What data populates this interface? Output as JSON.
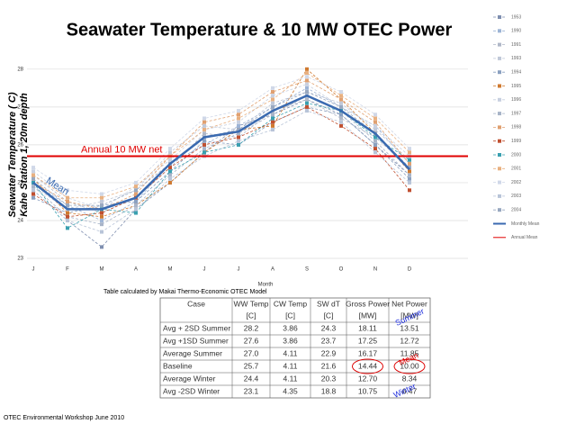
{
  "chart_data": {
    "type": "line",
    "title": "Seawater Temperature & 10 MW OTEC Power",
    "ylabel": [
      "Seawater Temperature ( C)",
      "Kahe Station 1, 20m depth"
    ],
    "xlabel": "Month",
    "categories": [
      "J",
      "F",
      "M",
      "A",
      "M",
      "J",
      "J",
      "A",
      "S",
      "O",
      "N",
      "D"
    ],
    "ylim": [
      23,
      28.4
    ],
    "yticks": [
      23,
      24,
      25,
      26,
      27,
      28
    ],
    "grid": true,
    "series": [
      {
        "name": "1953",
        "color": "#7f8fb0",
        "values": [
          24.8,
          24.0,
          23.3,
          24.3,
          25.0,
          25.8,
          26.5,
          26.8,
          27.2,
          26.8,
          26.0,
          25.2
        ]
      },
      {
        "name": "1990",
        "color": "#9db4d6",
        "values": [
          25.0,
          24.4,
          24.0,
          24.5,
          25.5,
          26.0,
          26.5,
          27.0,
          27.5,
          27.0,
          26.5,
          25.5
        ]
      },
      {
        "name": "1991",
        "color": "#b0b8c8",
        "values": [
          25.2,
          24.5,
          24.2,
          24.6,
          25.4,
          26.3,
          26.2,
          26.9,
          27.2,
          26.7,
          26.2,
          25.4
        ]
      },
      {
        "name": "1993",
        "color": "#c0c8d8",
        "values": [
          24.9,
          24.3,
          24.5,
          24.8,
          25.8,
          26.5,
          26.4,
          27.1,
          27.4,
          27.1,
          26.4,
          25.6
        ]
      },
      {
        "name": "1994",
        "color": "#8aa0c0",
        "values": [
          24.6,
          24.2,
          24.4,
          24.5,
          25.3,
          26.1,
          26.0,
          26.6,
          27.0,
          26.8,
          26.0,
          25.1
        ]
      },
      {
        "name": "1995",
        "color": "#d07a30",
        "values": [
          25.1,
          24.2,
          24.1,
          24.4,
          25.0,
          25.8,
          26.4,
          26.5,
          28.0,
          27.2,
          26.3,
          25.3
        ]
      },
      {
        "name": "1996",
        "color": "#c8d0e0",
        "values": [
          25.3,
          24.6,
          24.3,
          24.9,
          25.6,
          26.4,
          26.6,
          27.3,
          27.6,
          27.0,
          26.5,
          25.7
        ]
      },
      {
        "name": "1997",
        "color": "#a8b4c8",
        "values": [
          24.9,
          24.1,
          23.9,
          24.4,
          25.2,
          25.9,
          26.3,
          26.8,
          27.3,
          26.9,
          26.1,
          25.2
        ]
      },
      {
        "name": "1998",
        "color": "#e0a070",
        "values": [
          25.0,
          24.5,
          24.3,
          24.7,
          25.7,
          26.6,
          26.8,
          27.4,
          27.7,
          27.2,
          26.6,
          25.5
        ]
      },
      {
        "name": "1999",
        "color": "#c05030",
        "values": [
          24.7,
          24.1,
          24.2,
          24.6,
          25.4,
          26.0,
          26.2,
          26.6,
          27.0,
          26.5,
          25.9,
          24.8
        ]
      },
      {
        "name": "2000",
        "color": "#3aa0b0",
        "values": [
          25.0,
          23.8,
          24.3,
          24.2,
          25.3,
          25.8,
          26.0,
          26.7,
          27.1,
          26.9,
          26.2,
          25.6
        ]
      },
      {
        "name": "2001",
        "color": "#e8b080",
        "values": [
          25.2,
          24.6,
          24.6,
          24.9,
          25.7,
          26.4,
          26.7,
          27.2,
          27.9,
          27.3,
          26.7,
          25.8
        ]
      },
      {
        "name": "2002",
        "color": "#d0d8e8",
        "values": [
          25.4,
          24.8,
          24.7,
          25.0,
          25.9,
          26.7,
          26.9,
          27.5,
          27.8,
          27.4,
          26.8,
          25.9
        ]
      },
      {
        "name": "2003",
        "color": "#b8c4d8",
        "values": [
          24.8,
          24.0,
          23.7,
          24.3,
          25.1,
          25.7,
          26.1,
          26.4,
          26.9,
          26.6,
          25.8,
          25.0
        ]
      },
      {
        "name": "2004",
        "color": "#98a8c0",
        "values": [
          25.1,
          24.4,
          24.4,
          24.8,
          25.5,
          26.2,
          26.4,
          27.0,
          27.4,
          27.0,
          26.3,
          25.4
        ]
      }
    ],
    "mean_series": {
      "name": "Monthly Mean",
      "color": "#3a6ab0",
      "values": [
        25.0,
        24.3,
        24.3,
        24.6,
        25.5,
        26.2,
        26.35,
        26.9,
        27.3,
        26.9,
        26.3,
        25.35
      ]
    },
    "mean_label": "Mean",
    "annual_mean": {
      "name": "Annual Mean",
      "label": "Annual  10 MW net",
      "value": 25.7,
      "color": "#e00000"
    }
  },
  "table": {
    "caption": "Table calculated by Makai Thermo-Economic OTEC Model",
    "columns": [
      {
        "name": "Case"
      },
      {
        "name": "WW Temp",
        "unit": "[C]"
      },
      {
        "name": "CW Temp",
        "unit": "[C]"
      },
      {
        "name": "SW dT",
        "unit": "[C]"
      },
      {
        "name": "Gross Power",
        "unit": "[MW]"
      },
      {
        "name": "Net Power",
        "unit": "[MW]"
      }
    ],
    "rows": [
      [
        "Avg + 2SD Summer",
        "28.2",
        "3.86",
        "24.3",
        "18.11",
        "13.51"
      ],
      [
        "Avg +1SD Summer",
        "27.6",
        "3.86",
        "23.7",
        "17.25",
        "12.72"
      ],
      [
        "Average Summer",
        "27.0",
        "4.11",
        "22.9",
        "16.17",
        "11.85"
      ],
      [
        "Baseline",
        "25.7",
        "4.11",
        "21.6",
        "14.44",
        "10.00"
      ],
      [
        "Average Winter",
        "24.4",
        "4.11",
        "20.3",
        "12.70",
        "8.34"
      ],
      [
        "Avg -2SD Winter",
        "23.1",
        "4.35",
        "18.8",
        "10.75",
        "6.47"
      ]
    ],
    "annotations": {
      "summer": "Summer",
      "mean": "Mean",
      "winter": "Winter"
    }
  },
  "footer": "OTEC Environmental Workshop June 2010"
}
